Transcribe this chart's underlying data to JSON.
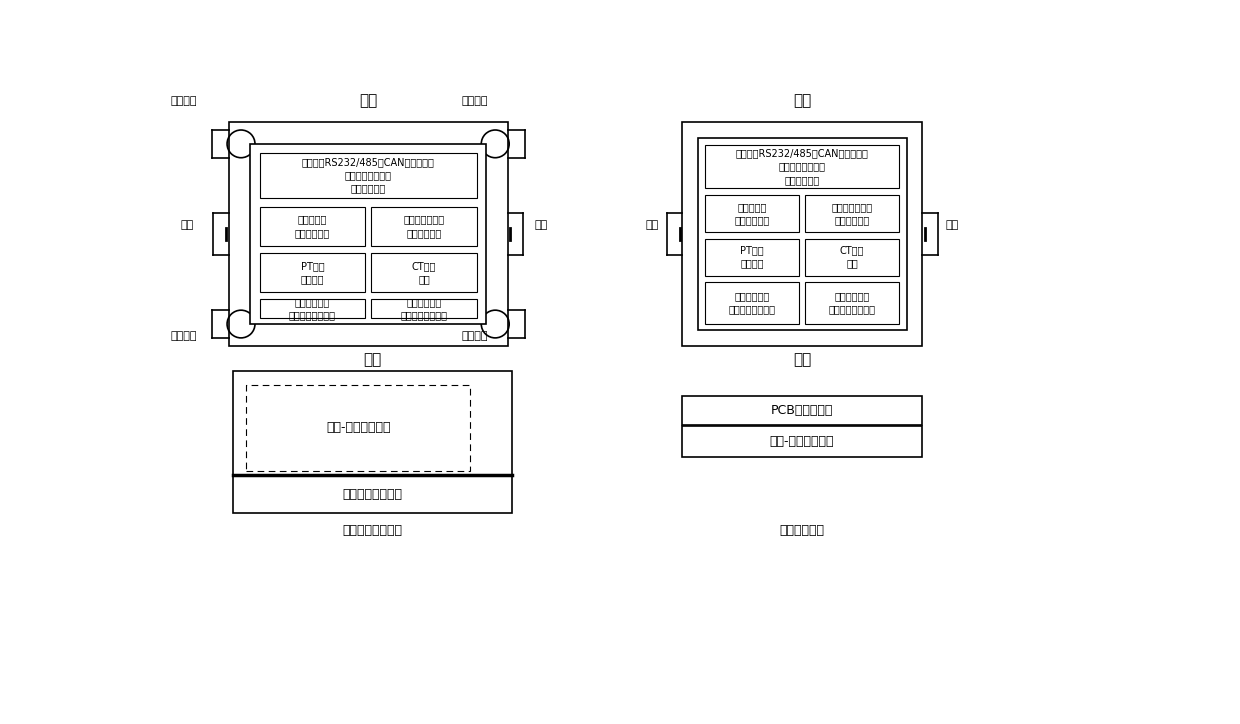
{
  "bg_color": "#ffffff",
  "line_color": "#000000",
  "title1": "俯视",
  "title2": "俯视",
  "title3": "正视",
  "title4": "正视",
  "caption1": "安装基座结构示意",
  "caption2": "底座结构示意",
  "label_tl": "固定螺孔",
  "label_tr": "固定螺孔",
  "label_bl": "固定螺孔",
  "label_br": "固定螺孔",
  "label_lock_l": "锁扣",
  "label_lock_r": "锁扣",
  "label_lock_l2": "锁扣",
  "label_lock_r2": "锁扣",
  "box1_text": "以太网、RS232/485、CAN、时钟信号\n电和光纤连接插座\n天线连接插座",
  "box2_text": "控制、状态\n信号连接插座",
  "box3_text": "直流、温度测量\n信号连接插座",
  "box4_text": "PT回路\n连接插座",
  "box5_text": "CT回路\n插座",
  "box6_text": "控制回路电源\n装置电源连接插座",
  "box7_text": "控制回路电源\n装置电源连接插座",
  "box1r_text": "以太网、RS232/485、CAN、时钟信号\n电和光纤连接插头\n天线连接插头",
  "box2r_text": "控制、状态\n信号连接插头",
  "box3r_text": "直流、温度测量\n信号连接插头",
  "box4r_text": "PT回路\n连接插头",
  "box5r_text": "CT回路\n插头",
  "box6r_text": "控制回路电源\n装置电源连接插头",
  "box7r_text": "控制回路电源\n装置电源连接插头",
  "front_dashed_text": "基座-底座连接插座",
  "front_solid_text": "外部引线连接端子",
  "front_pcb_text": "PCB板连接端子",
  "front_base_text": "基座-底座连接插头"
}
